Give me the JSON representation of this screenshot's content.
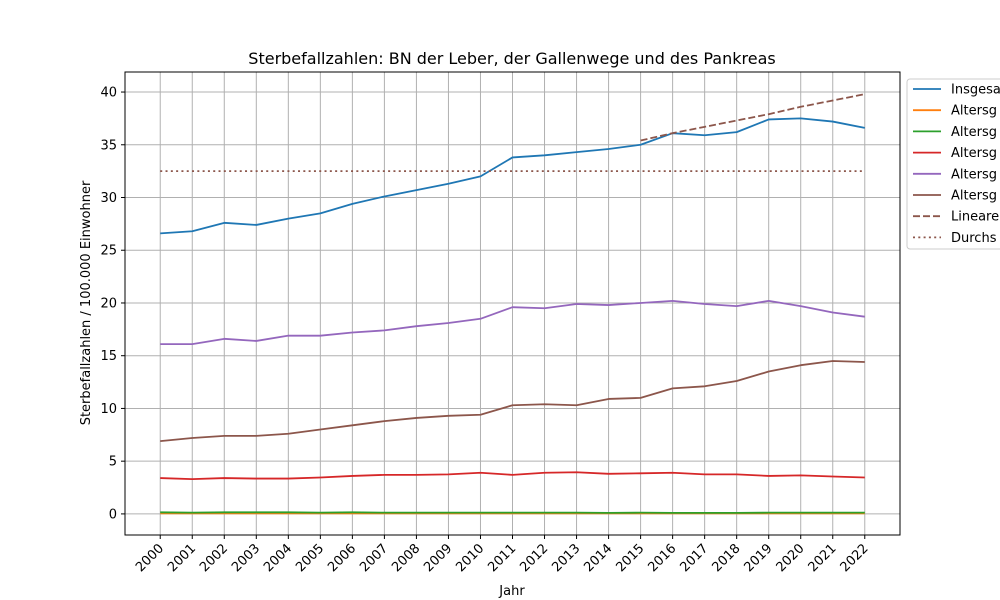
{
  "chart_data": {
    "type": "line",
    "title": "Sterbefallzahlen: BN der Leber, der Gallenwege und des Pankreas",
    "xlabel": "Jahr",
    "ylabel": "Sterbefallzahlen / 100.000 Einwohner",
    "x": [
      2000,
      2001,
      2002,
      2003,
      2004,
      2005,
      2006,
      2007,
      2008,
      2009,
      2010,
      2011,
      2012,
      2013,
      2014,
      2015,
      2016,
      2017,
      2018,
      2019,
      2020,
      2021,
      2022
    ],
    "xlim": [
      1998.9,
      2023.1
    ],
    "ylim": [
      -2.0,
      41.9
    ],
    "yticks": [
      0,
      5,
      10,
      15,
      20,
      25,
      30,
      35,
      40
    ],
    "grid": true,
    "legend_position": "right",
    "series": [
      {
        "name": "Insgesa",
        "color": "#1f77b4",
        "style": "solid",
        "values": [
          26.6,
          26.8,
          27.6,
          27.4,
          28.0,
          28.5,
          29.4,
          30.1,
          30.7,
          31.3,
          32.0,
          33.8,
          34.0,
          34.3,
          34.6,
          35.0,
          36.1,
          35.9,
          36.2,
          37.4,
          37.5,
          37.2,
          36.6
        ]
      },
      {
        "name": "Altersg",
        "color": "#ff7f0e",
        "style": "solid",
        "values": [
          0.05,
          0.05,
          0.05,
          0.05,
          0.05,
          0.05,
          0.05,
          0.05,
          0.05,
          0.05,
          0.05,
          0.05,
          0.05,
          0.05,
          0.05,
          0.05,
          0.05,
          0.05,
          0.05,
          0.05,
          0.05,
          0.05,
          0.05
        ]
      },
      {
        "name": "Altersg",
        "color": "#2ca02c",
        "style": "solid",
        "values": [
          0.15,
          0.12,
          0.15,
          0.15,
          0.15,
          0.12,
          0.15,
          0.12,
          0.12,
          0.12,
          0.12,
          0.12,
          0.12,
          0.12,
          0.1,
          0.12,
          0.1,
          0.1,
          0.1,
          0.12,
          0.12,
          0.12,
          0.12
        ]
      },
      {
        "name": "Altersg",
        "color": "#d62728",
        "style": "solid",
        "values": [
          3.4,
          3.3,
          3.4,
          3.35,
          3.35,
          3.45,
          3.6,
          3.7,
          3.7,
          3.75,
          3.9,
          3.7,
          3.9,
          3.95,
          3.8,
          3.85,
          3.9,
          3.75,
          3.75,
          3.6,
          3.65,
          3.55,
          3.45
        ]
      },
      {
        "name": "Altersg",
        "color": "#9467bd",
        "style": "solid",
        "values": [
          16.1,
          16.1,
          16.6,
          16.4,
          16.9,
          16.9,
          17.2,
          17.4,
          17.8,
          18.1,
          18.5,
          19.6,
          19.5,
          19.9,
          19.8,
          20.0,
          20.2,
          19.9,
          19.7,
          20.2,
          19.7,
          19.1,
          18.7
        ]
      },
      {
        "name": "Altersg",
        "color": "#8c564b",
        "style": "solid",
        "values": [
          6.9,
          7.2,
          7.4,
          7.4,
          7.6,
          8.0,
          8.4,
          8.8,
          9.1,
          9.3,
          9.4,
          10.3,
          10.4,
          10.3,
          10.9,
          11.0,
          11.9,
          12.1,
          12.6,
          13.5,
          14.1,
          14.5,
          14.4
        ]
      },
      {
        "name": "Lineare",
        "color": "#8c564b",
        "style": "dashed",
        "x": [
          2015,
          2016,
          2017,
          2018,
          2019,
          2020,
          2021,
          2022
        ],
        "values": [
          35.4,
          36.1,
          36.7,
          37.3,
          37.9,
          38.6,
          39.2,
          39.8
        ]
      },
      {
        "name": "Durchs",
        "color": "#8c564b",
        "style": "dotted",
        "x": [
          2000,
          2022
        ],
        "values": [
          32.5,
          32.5
        ]
      }
    ]
  }
}
